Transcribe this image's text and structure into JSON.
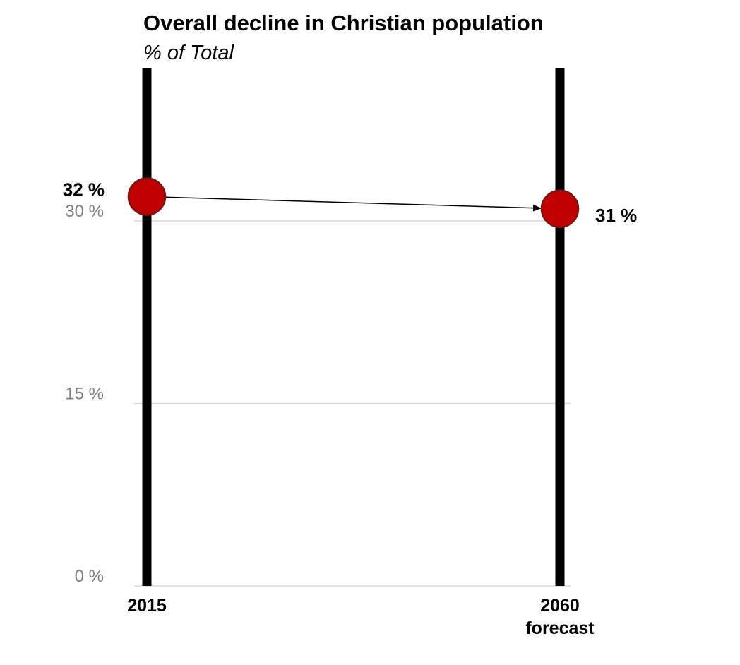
{
  "chart_data": {
    "type": "line",
    "title": "Overall decline in Christian population",
    "subtitle": "% of Total",
    "categories": [
      {
        "line1": "2015",
        "line2": ""
      },
      {
        "line1": "2060",
        "line2": "forecast"
      }
    ],
    "series": [
      {
        "name": "Christian population",
        "values": [
          32,
          31
        ],
        "labels": [
          "32 %",
          "31 %"
        ],
        "color": "#c00000"
      }
    ],
    "yticks": [
      {
        "value": 0,
        "label": "0 %"
      },
      {
        "value": 15,
        "label": "15 %"
      },
      {
        "value": 30,
        "label": "30 %"
      }
    ],
    "ylim": [
      0,
      44
    ],
    "xlabel": "",
    "ylabel": "",
    "grid": true,
    "connector": "arrow"
  }
}
